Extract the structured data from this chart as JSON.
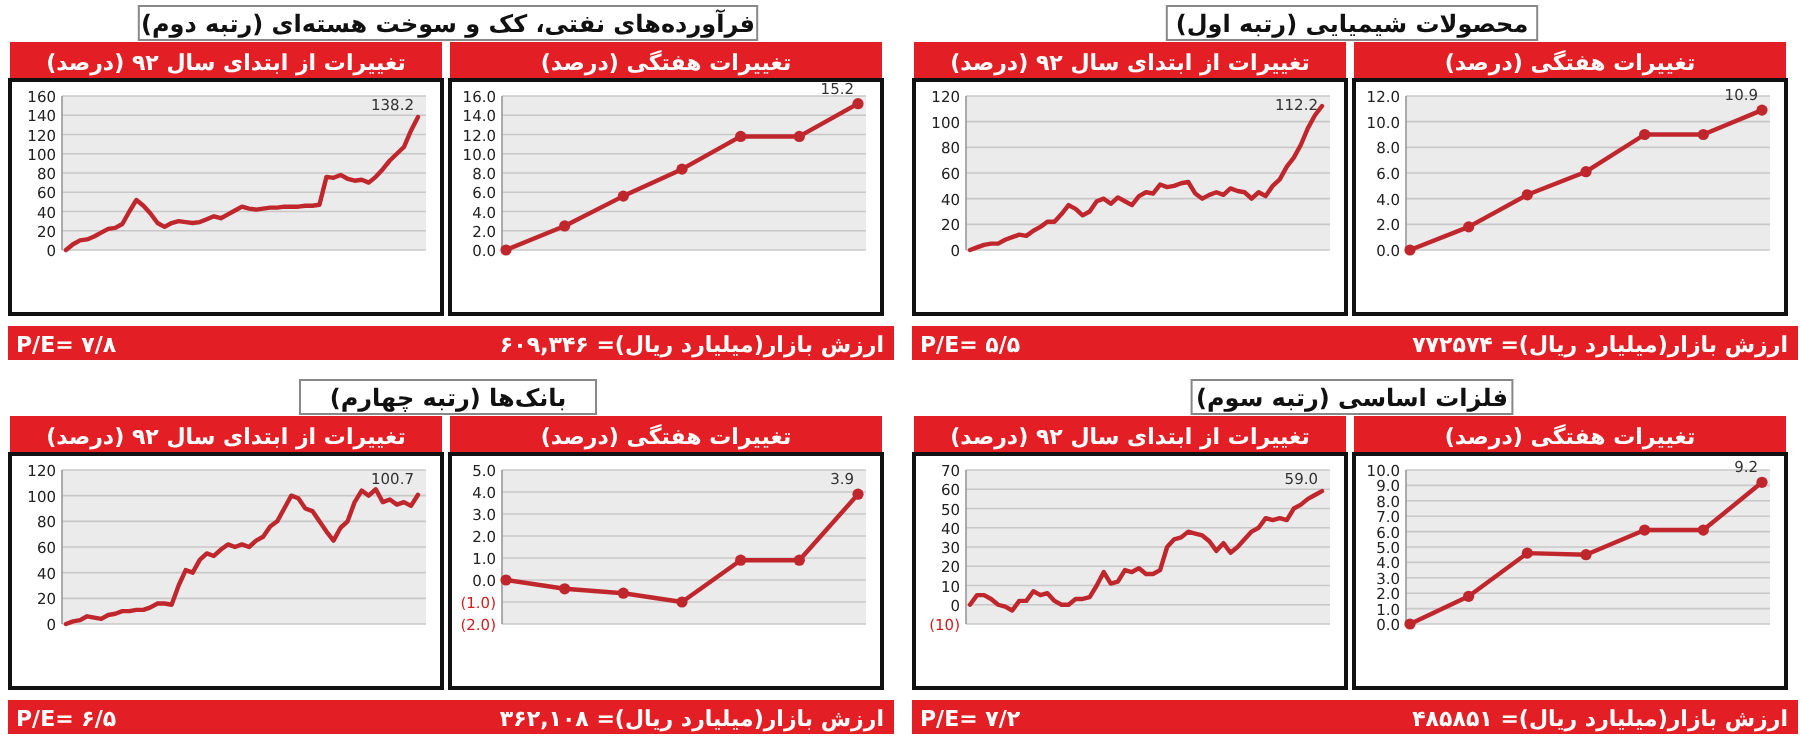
{
  "chart_data": [
    {
      "type": "other",
      "title": "فرآورده‌های نفتی، کک و سوخت هسته‌ای (رتبه دوم)",
      "annotations": [
        "ارزش بازار(میلیارد ریال)= ۶۰۹,۳۴۶",
        "P/E= ۷/۸"
      ]
    },
    {
      "type": "line",
      "title": "تغییرات از ابتدای سال ۹۲ (درصد)",
      "categories": [
        null,
        null,
        null,
        null,
        null,
        null,
        null,
        null,
        null,
        null,
        null,
        null,
        null,
        null,
        null,
        null,
        null,
        null,
        null,
        null,
        null,
        null,
        null,
        null,
        null,
        null,
        null,
        null,
        null,
        null,
        null,
        null,
        null,
        null,
        null,
        null,
        null,
        null,
        null,
        null,
        null,
        null,
        null,
        null,
        null,
        null,
        null,
        null,
        null,
        null,
        null
      ],
      "values": [
        0,
        6,
        10,
        11,
        14,
        18,
        22,
        23,
        27,
        40,
        52,
        46,
        38,
        28,
        24,
        28,
        30,
        29,
        28,
        29,
        32,
        35,
        33,
        37,
        41,
        45,
        43,
        42,
        43,
        44,
        44,
        45,
        45,
        45,
        46,
        46,
        47,
        76,
        75,
        78,
        74,
        72,
        73,
        70,
        76,
        84,
        93,
        100,
        107,
        124,
        138.2
      ],
      "color": "#c0272d",
      "ylim": [
        0,
        160
      ],
      "yticks": [
        0,
        20,
        40,
        60,
        80,
        100,
        120,
        140,
        160
      ],
      "grid": "y",
      "annotations": [
        "138.2"
      ]
    },
    {
      "type": "line",
      "title": "تغییرات هفتگی (درصد)",
      "categories": [
        null,
        null,
        null,
        null,
        null,
        null,
        null
      ],
      "values": [
        0,
        2.5,
        5.6,
        8.4,
        11.8,
        11.8,
        15.2
      ],
      "value_labels": [
        null,
        null,
        null,
        null,
        null,
        null,
        "15.2"
      ],
      "color": "#c0272d",
      "marker": "circle",
      "ylim": [
        0,
        16
      ],
      "yticks": [
        {
          "value": 0,
          "label": "0.0"
        },
        {
          "value": 2,
          "label": "2.0"
        },
        {
          "value": 4,
          "label": "4.0"
        },
        {
          "value": 6,
          "label": "6.0"
        },
        {
          "value": 8,
          "label": "8.0"
        },
        {
          "value": 10,
          "label": "10.0"
        },
        {
          "value": 12,
          "label": "12.0"
        },
        {
          "value": 14,
          "label": "14.0"
        },
        {
          "value": 16,
          "label": "16.0"
        }
      ],
      "grid": "y"
    },
    {
      "type": "other",
      "title": "محصولات شیمیایی (رتبه اول)",
      "annotations": [
        "ارزش بازار(میلیارد ریال)= ۷۷۲۵۷۴",
        "P/E= ۵/۵"
      ]
    },
    {
      "type": "line",
      "title": "تغییرات از ابتدای سال ۹۲ (درصد)",
      "categories": [
        null,
        null,
        null,
        null,
        null,
        null,
        null,
        null,
        null,
        null,
        null,
        null,
        null,
        null,
        null,
        null,
        null,
        null,
        null,
        null,
        null,
        null,
        null,
        null,
        null,
        null,
        null,
        null,
        null,
        null,
        null,
        null,
        null,
        null,
        null,
        null,
        null,
        null,
        null,
        null,
        null,
        null,
        null,
        null,
        null,
        null,
        null,
        null,
        null,
        null,
        null
      ],
      "values": [
        0,
        2,
        4,
        5,
        5,
        8,
        10,
        12,
        11,
        15,
        18,
        22,
        22,
        28,
        35,
        32,
        27,
        30,
        38,
        40,
        36,
        41,
        38,
        35,
        42,
        45,
        44,
        51,
        49,
        50,
        52,
        53,
        44,
        40,
        43,
        45,
        43,
        48,
        46,
        45,
        40,
        45,
        42,
        50,
        55,
        65,
        72,
        82,
        95,
        105,
        112.2
      ],
      "color": "#c0272d",
      "ylim": [
        0,
        120
      ],
      "yticks": [
        0,
        20,
        40,
        60,
        80,
        100,
        120
      ],
      "grid": "y",
      "annotations": [
        "112.2"
      ]
    },
    {
      "type": "line",
      "title": "تغییرات هفتگی (درصد)",
      "categories": [
        null,
        null,
        null,
        null,
        null,
        null,
        null
      ],
      "values": [
        0,
        1.8,
        4.3,
        6.1,
        9.0,
        9.0,
        10.9
      ],
      "value_labels": [
        null,
        null,
        null,
        null,
        null,
        null,
        "10.9"
      ],
      "color": "#c0272d",
      "marker": "circle",
      "ylim": [
        0,
        12
      ],
      "yticks": [
        {
          "value": 0,
          "label": "0.0"
        },
        {
          "value": 2,
          "label": "2.0"
        },
        {
          "value": 4,
          "label": "4.0"
        },
        {
          "value": 6,
          "label": "6.0"
        },
        {
          "value": 8,
          "label": "8.0"
        },
        {
          "value": 10,
          "label": "10.0"
        },
        {
          "value": 12,
          "label": "12.0"
        }
      ],
      "grid": "y"
    },
    {
      "type": "other",
      "title": "بانک‌ها (رتبه چهارم)",
      "annotations": [
        "ارزش بازار(میلیارد ریال)= ۳۶۲,۱۰۸",
        "P/E= ۶/۵"
      ]
    },
    {
      "type": "line",
      "title": "تغییرات از ابتدای سال ۹۲ (درصد)",
      "categories": [
        null,
        null,
        null,
        null,
        null,
        null,
        null,
        null,
        null,
        null,
        null,
        null,
        null,
        null,
        null,
        null,
        null,
        null,
        null,
        null,
        null,
        null,
        null,
        null,
        null,
        null,
        null,
        null,
        null,
        null,
        null,
        null,
        null,
        null,
        null,
        null,
        null,
        null,
        null,
        null,
        null,
        null,
        null,
        null,
        null,
        null,
        null,
        null,
        null,
        null,
        null
      ],
      "values": [
        0,
        2,
        3,
        6,
        5,
        4,
        7,
        8,
        10,
        10,
        11,
        11,
        13,
        16,
        16,
        15,
        30,
        42,
        40,
        50,
        55,
        53,
        58,
        62,
        60,
        62,
        60,
        65,
        68,
        76,
        80,
        90,
        100,
        98,
        90,
        88,
        80,
        72,
        65,
        75,
        80,
        95,
        104,
        100,
        105,
        95,
        97,
        93,
        95,
        92,
        100.7
      ],
      "color": "#c0272d",
      "ylim": [
        0,
        120
      ],
      "yticks": [
        0,
        20,
        40,
        60,
        80,
        100,
        120
      ],
      "grid": "y",
      "annotations": [
        "100.7"
      ]
    },
    {
      "type": "line",
      "title": "تغییرات هفتگی (درصد)",
      "categories": [
        null,
        null,
        null,
        null,
        null,
        null,
        null
      ],
      "values": [
        0,
        -0.4,
        -0.6,
        -1.0,
        0.9,
        0.9,
        3.9
      ],
      "value_labels": [
        null,
        null,
        null,
        null,
        null,
        null,
        "3.9"
      ],
      "color": "#c0272d",
      "marker": "circle",
      "ylim": [
        -2,
        5
      ],
      "yticks": [
        {
          "value": -2,
          "label": "(2.0)"
        },
        {
          "value": -1,
          "label": "(1.0)"
        },
        {
          "value": 0,
          "label": "0.0"
        },
        {
          "value": 1,
          "label": "1.0"
        },
        {
          "value": 2,
          "label": "2.0"
        },
        {
          "value": 3,
          "label": "3.0"
        },
        {
          "value": 4,
          "label": "4.0"
        },
        {
          "value": 5,
          "label": "5.0"
        }
      ],
      "grid": "y"
    },
    {
      "type": "other",
      "title": "فلزات اساسی (رتبه سوم)",
      "annotations": [
        "ارزش بازار(میلیارد ریال)= ۴۸۵۸۵۱",
        "P/E= ۷/۲"
      ]
    },
    {
      "type": "line",
      "title": "تغییرات از ابتدای سال ۹۲ (درصد)",
      "categories": [
        null,
        null,
        null,
        null,
        null,
        null,
        null,
        null,
        null,
        null,
        null,
        null,
        null,
        null,
        null,
        null,
        null,
        null,
        null,
        null,
        null,
        null,
        null,
        null,
        null,
        null,
        null,
        null,
        null,
        null,
        null,
        null,
        null,
        null,
        null,
        null,
        null,
        null,
        null,
        null,
        null,
        null,
        null,
        null,
        null,
        null,
        null,
        null,
        null,
        null,
        null
      ],
      "values": [
        0,
        5,
        5,
        3,
        0,
        -1,
        -3,
        2,
        2,
        7,
        5,
        6,
        2,
        0,
        0,
        3,
        3,
        4,
        10,
        17,
        11,
        12,
        18,
        17,
        19,
        16,
        16,
        18,
        30,
        34,
        35,
        38,
        37,
        36,
        33,
        28,
        32,
        27,
        30,
        34,
        38,
        40,
        45,
        44,
        45,
        44,
        50,
        52,
        55,
        57,
        59
      ],
      "color": "#c0272d",
      "ylim": [
        -10,
        70
      ],
      "yticks": [
        {
          "value": -10,
          "label": "(10)"
        },
        0,
        10,
        20,
        30,
        40,
        50,
        60,
        70
      ],
      "grid": "y",
      "annotations": [
        "59.0"
      ]
    },
    {
      "type": "line",
      "title": "تغییرات هفتگی (درصد)",
      "categories": [
        null,
        null,
        null,
        null,
        null,
        null,
        null
      ],
      "values": [
        0,
        1.8,
        4.6,
        4.5,
        6.1,
        6.1,
        9.2
      ],
      "value_labels": [
        null,
        null,
        null,
        null,
        null,
        null,
        "9.2"
      ],
      "color": "#c0272d",
      "marker": "circle",
      "ylim": [
        0,
        10
      ],
      "yticks": [
        {
          "value": 0,
          "label": "0.0"
        },
        {
          "value": 1,
          "label": "1.0"
        },
        {
          "value": 2,
          "label": "2.0"
        },
        {
          "value": 3,
          "label": "3.0"
        },
        {
          "value": 4,
          "label": "4.0"
        },
        {
          "value": 5,
          "label": "5.0"
        },
        {
          "value": 6,
          "label": "6.0"
        },
        {
          "value": 7,
          "label": "7.0"
        },
        {
          "value": 8,
          "label": "8.0"
        },
        {
          "value": 9,
          "label": "9.0"
        },
        {
          "value": 10,
          "label": "10.0"
        }
      ],
      "grid": "y"
    }
  ]
}
